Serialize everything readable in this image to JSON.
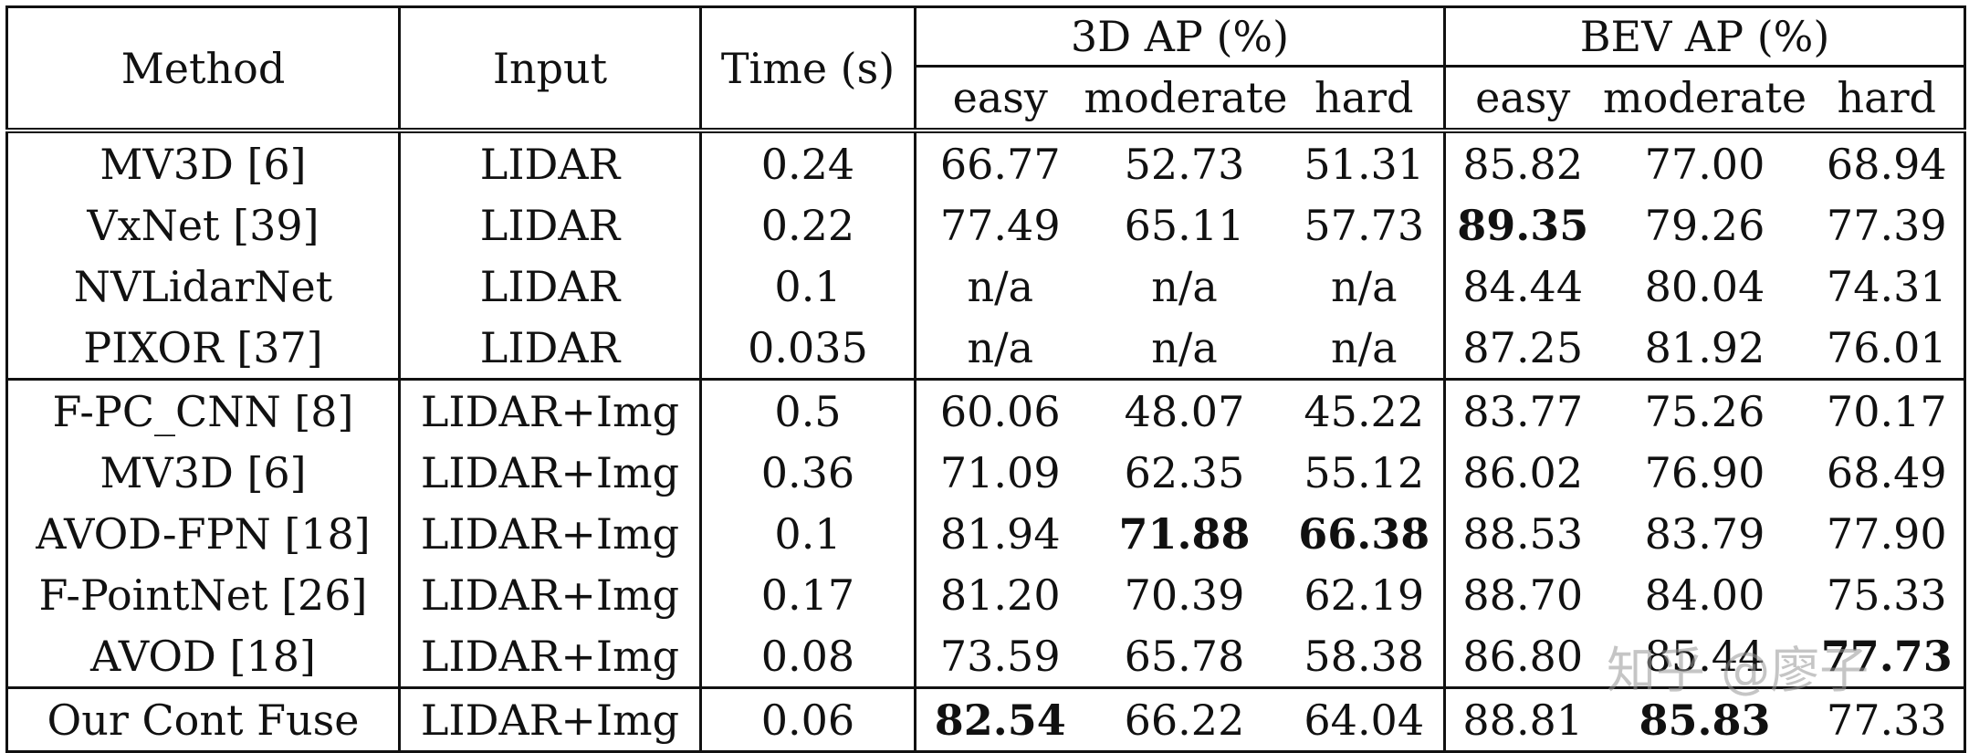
{
  "header": {
    "method": "Method",
    "input": "Input",
    "time": "Time (s)",
    "group_3d": "3D AP (%)",
    "group_bev": "BEV AP (%)",
    "sub": [
      "easy",
      "moderate",
      "hard",
      "easy",
      "moderate",
      "hard"
    ]
  },
  "rows": [
    {
      "method": "MV3D [6]",
      "input": "LIDAR",
      "time": "0.24",
      "vals": [
        "66.77",
        "52.73",
        "51.31",
        "85.82",
        "77.00",
        "68.94"
      ]
    },
    {
      "method": "VxNet [39]",
      "input": "LIDAR",
      "time": "0.22",
      "vals": [
        "77.49",
        "65.11",
        "57.73",
        "89.35",
        "79.26",
        "77.39"
      ]
    },
    {
      "method": "NVLidarNet",
      "input": "LIDAR",
      "time": "0.1",
      "vals": [
        "n/a",
        "n/a",
        "n/a",
        "84.44",
        "80.04",
        "74.31"
      ]
    },
    {
      "method": "PIXOR [37]",
      "input": "LIDAR",
      "time": "0.035",
      "vals": [
        "n/a",
        "n/a",
        "n/a",
        "87.25",
        "81.92",
        "76.01"
      ]
    },
    {
      "method": "F-PC_CNN [8]",
      "input": "LIDAR+Img",
      "time": "0.5",
      "vals": [
        "60.06",
        "48.07",
        "45.22",
        "83.77",
        "75.26",
        "70.17"
      ]
    },
    {
      "method": "MV3D [6]",
      "input": "LIDAR+Img",
      "time": "0.36",
      "vals": [
        "71.09",
        "62.35",
        "55.12",
        "86.02",
        "76.90",
        "68.49"
      ]
    },
    {
      "method": "AVOD-FPN [18]",
      "input": "LIDAR+Img",
      "time": "0.1",
      "vals": [
        "81.94",
        "71.88",
        "66.38",
        "88.53",
        "83.79",
        "77.90"
      ]
    },
    {
      "method": "F-PointNet [26]",
      "input": "LIDAR+Img",
      "time": "0.17",
      "vals": [
        "81.20",
        "70.39",
        "62.19",
        "88.70",
        "84.00",
        "75.33"
      ]
    },
    {
      "method": "AVOD [18]",
      "input": "LIDAR+Img",
      "time": "0.08",
      "vals": [
        "73.59",
        "65.78",
        "58.38",
        "86.80",
        "85.44",
        "77.73"
      ]
    },
    {
      "method": "Our Cont Fuse",
      "input": "LIDAR+Img",
      "time": "0.06",
      "vals": [
        "82.54",
        "66.22",
        "64.04",
        "88.81",
        "85.83",
        "77.33"
      ]
    }
  ],
  "watermark": "知乎 @廖子"
}
